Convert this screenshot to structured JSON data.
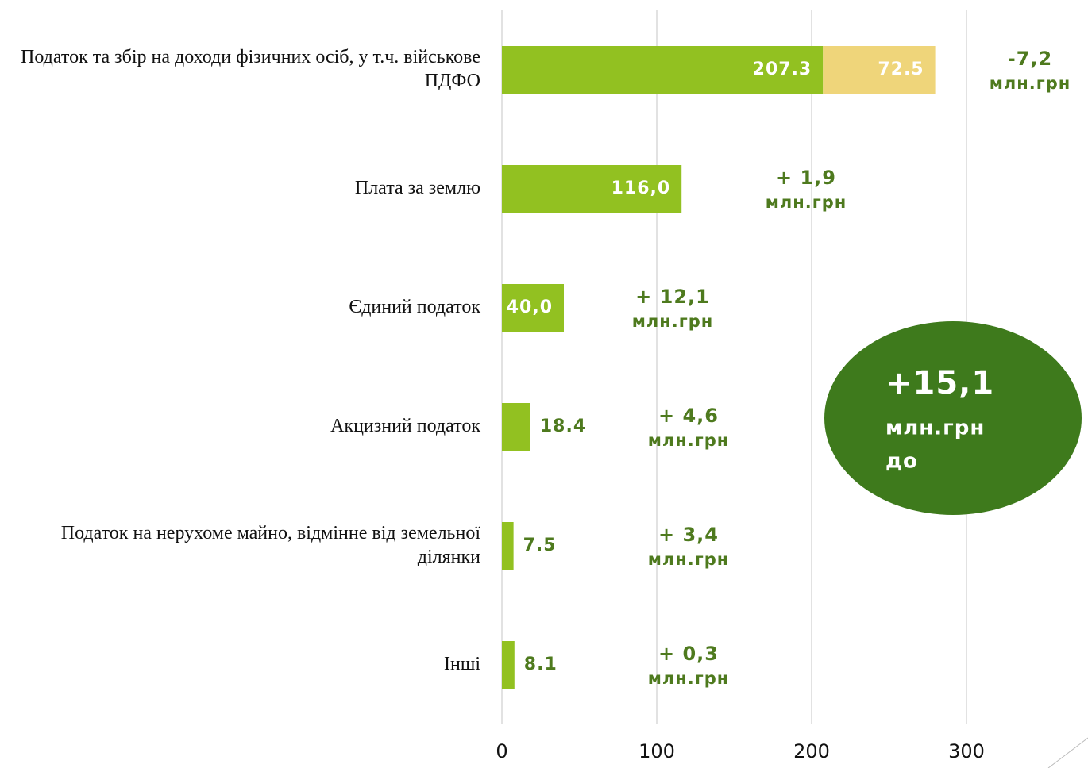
{
  "chart_data": {
    "type": "barh",
    "categories": [
      "Податок та збір на доходи фізичних осіб, у т.ч. військове ПДФО",
      "Плата за землю",
      "Єдиний податок",
      "Акцизний податок",
      "Податок на нерухоме майно, відмінне від земельної ділянки",
      "Інші"
    ],
    "series": [
      {
        "color": "#92c121",
        "values": [
          207.3,
          116.0,
          40.0,
          18.4,
          7.5,
          8.1
        ],
        "value_labels": [
          "207.3",
          "116,0",
          "40,0",
          "18.4",
          "7.5",
          "8.1"
        ]
      },
      {
        "color": "#efd57a",
        "values": [
          72.5,
          null,
          null,
          null,
          null,
          null
        ]
      }
    ],
    "xlim": [
      0,
      300
    ],
    "xticks": [
      0,
      100,
      200,
      300
    ],
    "grid": true,
    "annotations": [
      {
        "text": "-7,2",
        "unit": "млн.грн"
      },
      {
        "text": "+ 1,9",
        "unit": "млн.грн"
      },
      {
        "text": "+ 12,1",
        "unit": "млн.грн"
      },
      {
        "text": "+ 4,6",
        "unit": "млн.грн"
      },
      {
        "text": "+ 3,4",
        "unit": "млн.грн"
      },
      {
        "text": "+ 0,3",
        "unit": "млн.грн"
      }
    ],
    "total": {
      "text": "+15,1",
      "unit": "млн.грн",
      "note": "до"
    }
  }
}
